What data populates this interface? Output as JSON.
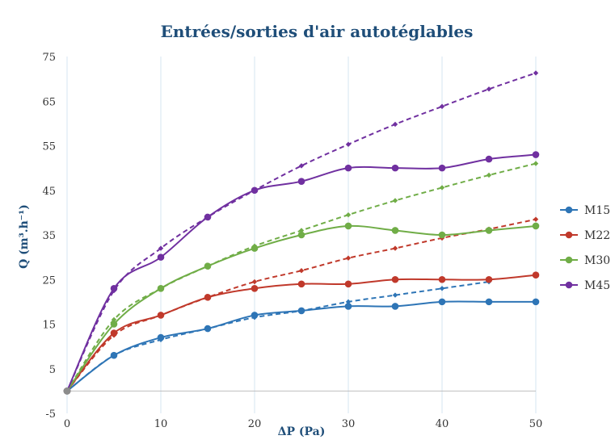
{
  "chart_data": {
    "type": "line",
    "title": "Entrées/sorties d'air autotéglables",
    "xlabel": "ΔP (Pa)",
    "ylabel": "Q (m³.h⁻¹)",
    "xlim": [
      0,
      50
    ],
    "ylim": [
      -5,
      75
    ],
    "xticks": [
      0,
      10,
      20,
      30,
      40,
      50
    ],
    "yticks": [
      -5,
      5,
      15,
      25,
      35,
      45,
      55,
      65,
      75
    ],
    "grid": "vertical",
    "legend_position": "right",
    "series": [
      {
        "name": "M15",
        "color": "#2e75b6",
        "measured": {
          "x": [
            0,
            5,
            10,
            15,
            20,
            25,
            30,
            35,
            40,
            45,
            50
          ],
          "y": [
            0,
            8,
            12,
            14,
            17,
            18,
            19,
            19,
            20,
            20,
            20
          ]
        },
        "fit": {
          "x": [
            0,
            5,
            10,
            15,
            20,
            25,
            30,
            35,
            40,
            45
          ],
          "y": [
            0,
            8,
            11.5,
            14,
            16.5,
            18,
            20,
            21.5,
            23,
            24.5
          ]
        }
      },
      {
        "name": "M22",
        "color": "#c0392b",
        "measured": {
          "x": [
            0,
            5,
            10,
            15,
            20,
            25,
            30,
            35,
            40,
            45,
            50
          ],
          "y": [
            0,
            13,
            17,
            21,
            23,
            24,
            24,
            25,
            25,
            25,
            26
          ]
        },
        "fit": {
          "x": [
            0,
            5,
            10,
            15,
            20,
            25,
            30,
            35,
            40,
            45,
            50
          ],
          "y": [
            0,
            12.5,
            17,
            21,
            24.5,
            27,
            29.8,
            32,
            34.3,
            36.3,
            38.5
          ]
        }
      },
      {
        "name": "M30",
        "color": "#70ad47",
        "measured": {
          "x": [
            0,
            5,
            10,
            15,
            20,
            25,
            30,
            35,
            40,
            45,
            50
          ],
          "y": [
            0,
            15,
            23,
            28,
            32,
            35,
            37,
            36,
            35,
            36,
            37
          ]
        },
        "fit": {
          "x": [
            0,
            5,
            10,
            15,
            20,
            25,
            30,
            35,
            40,
            45,
            50
          ],
          "y": [
            0,
            16,
            23,
            28,
            32.5,
            36,
            39.5,
            42.7,
            45.6,
            48.4,
            51
          ]
        }
      },
      {
        "name": "M45",
        "color": "#7030a0",
        "measured": {
          "x": [
            0,
            5,
            10,
            15,
            20,
            25,
            30,
            35,
            40,
            45,
            50
          ],
          "y": [
            0,
            23,
            30,
            39,
            45,
            47,
            50,
            50,
            50,
            52,
            53
          ]
        },
        "fit": {
          "x": [
            0,
            5,
            10,
            15,
            20,
            25,
            30,
            35,
            40,
            45,
            50
          ],
          "y": [
            0,
            22.5,
            32,
            39,
            45,
            50.5,
            55.3,
            59.8,
            63.8,
            67.7,
            71.3
          ]
        }
      }
    ]
  }
}
